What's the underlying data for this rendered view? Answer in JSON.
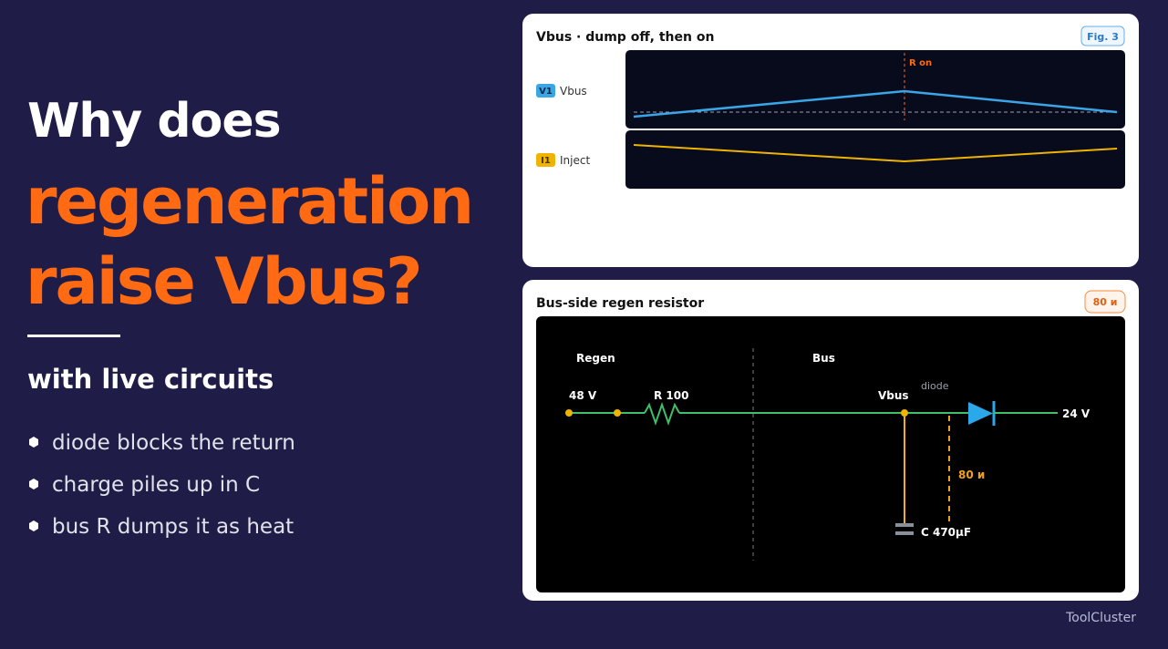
{
  "slide": {
    "title": {
      "line1": "Why does",
      "line2": "regeneration",
      "line3": "raise Vbus?"
    },
    "subtitle": "with live circuits",
    "bullets": [
      "diode blocks the return",
      "charge piles up in C",
      "bus R dumps it as heat"
    ]
  },
  "scope_panel": {
    "title": "Vbus · dump off, then on",
    "badge": "Fig. 3",
    "channels": [
      {
        "tag": "V1",
        "label": "Vbus"
      },
      {
        "tag": "I1",
        "label": "Inject"
      }
    ],
    "marker": "R on"
  },
  "circuit_panel": {
    "title": "Bus-side regen resistor",
    "badge": "80 и",
    "labels": {
      "regen": "Regen",
      "bus": "Bus",
      "source": "48 V",
      "resistor": "R 100",
      "node": "Vbus",
      "diode": "diode",
      "load": "24 V",
      "current": "80 и",
      "capacitor": "C 470μF"
    }
  },
  "footer": "ToolCluster"
}
